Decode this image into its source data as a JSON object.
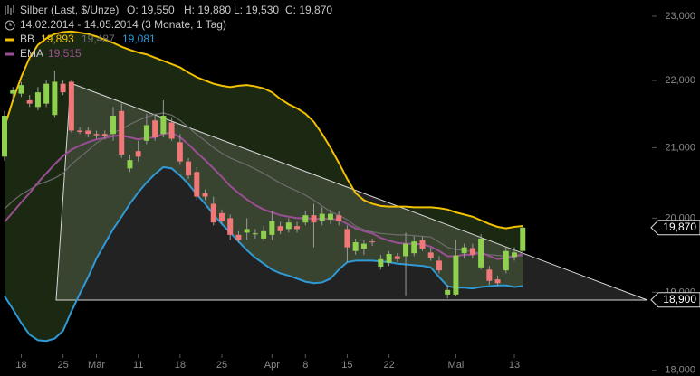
{
  "chart_data": {
    "type": "candlestick",
    "legend": {
      "instrument": "Silber (Last, $/Unze)",
      "open": "O: 19,550",
      "high": "H: 19,880",
      "low": "L: 19,530",
      "close": "C: 19,870",
      "period": "14.02.2014 - 14.05.2014 (3 Monate, 1 Tag)"
    },
    "categories": [
      null,
      null,
      "18",
      null,
      null,
      null,
      null,
      "25",
      null,
      null,
      null,
      "Mär",
      null,
      null,
      null,
      null,
      "11",
      null,
      null,
      null,
      null,
      "18",
      null,
      null,
      null,
      null,
      "25",
      null,
      null,
      null,
      null,
      null,
      "Apr",
      null,
      null,
      null,
      "8",
      null,
      null,
      null,
      null,
      "15",
      null,
      null,
      null,
      null,
      "22",
      null,
      null,
      null,
      null,
      null,
      null,
      null,
      "Mai",
      null,
      null,
      null,
      null,
      null,
      null,
      "13",
      null
    ],
    "open": [
      20.87,
      21.8,
      21.8,
      21.7,
      21.6,
      21.65,
      21.48,
      21.95,
      21.98,
      21.25,
      21.25,
      21.2,
      21.2,
      21.2,
      21.54,
      20.7,
      20.95,
      21.1,
      21.4,
      21.2,
      21.37,
      21.08,
      20.8,
      20.65,
      20.35,
      20.2,
      20.07,
      20.0,
      19.77,
      19.8,
      19.78,
      19.72,
      19.77,
      19.89,
      19.85,
      19.89,
      19.94,
      20.04,
      19.96,
      19.98,
      20.04,
      19.85,
      19.55,
      19.58,
      19.68,
      19.34,
      19.39,
      19.48,
      19.48,
      19.52,
      19.7,
      19.53,
      19.42,
      18.97,
      18.97,
      19.52,
      19.59,
      19.33,
      19.3,
      19.17,
      19.29,
      19.47,
      19.55
    ],
    "high": [
      21.54,
      21.9,
      21.98,
      21.78,
      21.9,
      22.0,
      22.15,
      22.0,
      22.0,
      21.3,
      21.3,
      21.25,
      21.25,
      21.6,
      21.65,
      20.9,
      21.1,
      21.5,
      21.5,
      21.7,
      21.45,
      21.2,
      20.85,
      20.72,
      20.4,
      20.3,
      20.12,
      20.05,
      19.82,
      20.0,
      19.85,
      19.9,
      20.1,
      19.95,
      20.0,
      19.95,
      20.1,
      20.2,
      20.15,
      20.12,
      20.1,
      19.9,
      19.72,
      19.7,
      19.72,
      19.5,
      19.55,
      19.52,
      19.8,
      19.75,
      19.75,
      19.6,
      19.48,
      19.1,
      19.7,
      19.65,
      19.65,
      19.78,
      19.35,
      19.22,
      19.6,
      19.6,
      19.88
    ],
    "low": [
      20.81,
      21.7,
      21.75,
      21.6,
      21.55,
      21.6,
      21.45,
      21.78,
      21.22,
      21.2,
      21.15,
      21.13,
      21.12,
      21.1,
      20.85,
      20.65,
      20.8,
      21.05,
      21.1,
      21.15,
      21.1,
      20.75,
      20.55,
      20.25,
      20.25,
      19.9,
      19.92,
      19.7,
      19.66,
      19.7,
      19.72,
      19.68,
      19.7,
      19.78,
      19.8,
      19.8,
      19.9,
      19.6,
      19.9,
      19.92,
      19.9,
      19.4,
      19.5,
      19.5,
      19.62,
      19.3,
      19.35,
      19.4,
      18.95,
      19.48,
      19.55,
      19.42,
      19.25,
      18.92,
      18.95,
      19.45,
      19.45,
      19.3,
      19.1,
      19.08,
      19.25,
      19.42,
      19.53
    ],
    "close": [
      21.47,
      21.85,
      21.93,
      21.65,
      21.82,
      21.95,
      21.98,
      21.82,
      21.25,
      21.23,
      21.2,
      21.18,
      21.17,
      21.47,
      20.9,
      20.82,
      20.87,
      21.33,
      21.15,
      21.47,
      21.13,
      20.8,
      20.6,
      20.3,
      20.3,
      19.94,
      19.96,
      19.77,
      19.7,
      19.85,
      19.79,
      19.82,
      19.96,
      19.82,
      19.94,
      19.85,
      20.04,
      19.94,
      20.06,
      20.06,
      19.96,
      19.6,
      19.67,
      19.65,
      19.67,
      19.44,
      19.51,
      19.44,
      19.65,
      19.68,
      19.58,
      19.46,
      19.29,
      19.03,
      19.49,
      19.6,
      19.5,
      19.72,
      19.15,
      19.12,
      19.55,
      19.53,
      19.87
    ],
    "up_color": "#8fd14f",
    "down_color": "#f07878",
    "band_fill": "#1b2812",
    "indicators": [
      {
        "name": "BB",
        "color": "#f2c200",
        "bands": [
          {
            "color": "#f2c200",
            "value_label": "19,893",
            "values": [
              21.3,
              21.7,
              22.05,
              22.35,
              22.55,
              22.65,
              22.72,
              22.75,
              22.76,
              22.74,
              22.72,
              22.68,
              22.63,
              22.58,
              22.52,
              22.47,
              22.43,
              22.4,
              22.35,
              22.3,
              22.25,
              22.2,
              22.12,
              22.05,
              22.0,
              21.95,
              21.92,
              21.9,
              21.92,
              21.93,
              21.91,
              21.88,
              21.82,
              21.72,
              21.64,
              21.58,
              21.5,
              21.38,
              21.2,
              21.0,
              20.78,
              20.55,
              20.35,
              20.25,
              20.2,
              20.17,
              20.16,
              20.16,
              20.16,
              20.15,
              20.15,
              20.15,
              20.14,
              20.12,
              20.08,
              20.05,
              20.02,
              19.97,
              19.92,
              19.88,
              19.86,
              19.88,
              19.893
            ]
          },
          {
            "color": "#6e6e6e",
            "value_label": "19,487",
            "values": [
              20.13,
              20.24,
              20.33,
              20.4,
              20.47,
              20.51,
              20.56,
              20.63,
              20.76,
              20.86,
              20.96,
              21.07,
              21.14,
              21.22,
              21.27,
              21.34,
              21.4,
              21.45,
              21.49,
              21.51,
              21.48,
              21.4,
              21.3,
              21.19,
              21.1,
              21.0,
              20.92,
              20.85,
              20.8,
              20.75,
              20.69,
              20.63,
              20.56,
              20.49,
              20.43,
              20.38,
              20.32,
              20.25,
              20.17,
              20.09,
              20.04,
              19.98,
              19.89,
              19.84,
              19.81,
              19.79,
              19.78,
              19.77,
              19.77,
              19.76,
              19.75,
              19.74,
              19.67,
              19.6,
              19.57,
              19.56,
              19.54,
              19.52,
              19.5,
              19.49,
              19.48,
              19.48,
              19.487
            ]
          },
          {
            "color": "#2f9ad6",
            "value_label": "19,081",
            "values": [
              18.95,
              18.78,
              18.6,
              18.45,
              18.38,
              18.37,
              18.4,
              18.5,
              18.75,
              18.98,
              19.2,
              19.45,
              19.65,
              19.85,
              20.02,
              20.2,
              20.36,
              20.5,
              20.62,
              20.72,
              20.7,
              20.6,
              20.48,
              20.33,
              20.2,
              20.05,
              19.92,
              19.8,
              19.68,
              19.56,
              19.46,
              19.38,
              19.3,
              19.25,
              19.22,
              19.18,
              19.14,
              19.12,
              19.13,
              19.18,
              19.3,
              19.4,
              19.42,
              19.42,
              19.42,
              19.41,
              19.4,
              19.38,
              19.37,
              19.36,
              19.35,
              19.33,
              19.2,
              19.08,
              19.06,
              19.06,
              19.05,
              19.07,
              19.08,
              19.09,
              19.09,
              19.07,
              19.081
            ]
          }
        ]
      },
      {
        "name": "EMA",
        "color": "#9a4f94",
        "bands": [
          {
            "color": "#9a4f94",
            "value_label": "19,515",
            "values": [
              19.95,
              20.08,
              20.22,
              20.35,
              20.5,
              20.63,
              20.76,
              20.88,
              20.97,
              21.03,
              21.08,
              21.12,
              21.14,
              21.17,
              21.18,
              21.15,
              21.12,
              21.14,
              21.15,
              21.2,
              21.22,
              21.15,
              21.05,
              20.93,
              20.82,
              20.7,
              20.58,
              20.45,
              20.35,
              20.26,
              20.18,
              20.12,
              20.08,
              20.04,
              20.02,
              20.0,
              20.0,
              19.99,
              19.99,
              19.99,
              19.98,
              19.92,
              19.86,
              19.82,
              19.79,
              19.73,
              19.69,
              19.66,
              19.65,
              19.65,
              19.64,
              19.61,
              19.55,
              19.48,
              19.48,
              19.5,
              19.5,
              19.53,
              19.48,
              19.44,
              19.46,
              19.47,
              19.515
            ]
          }
        ]
      }
    ],
    "ylim": [
      17.93,
      23.26
    ],
    "log_scale": true,
    "yticks": [
      {
        "value": 23,
        "label": "23,000"
      },
      {
        "value": 22,
        "label": "22,000"
      },
      {
        "value": 21,
        "label": "21,000"
      },
      {
        "value": 20,
        "label": "20,000"
      },
      {
        "value": 19,
        "label": "19,000"
      },
      {
        "value": 18,
        "label": "18,000"
      }
    ],
    "price_tags": [
      {
        "value": 19.87,
        "label": "19,870"
      },
      {
        "value": 18.9,
        "label": "18,900"
      }
    ]
  }
}
